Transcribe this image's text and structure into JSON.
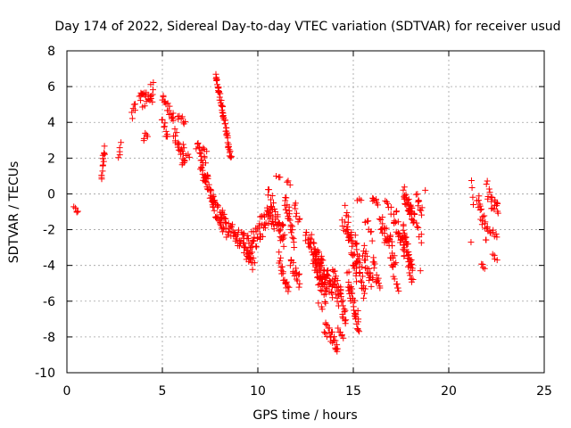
{
  "chart_data": {
    "type": "scatter",
    "title": "Day 174 of 2022, Sidereal Day-to-day VTEC variation (SDTVAR) for receiver usud",
    "xlabel": "GPS time / hours",
    "ylabel": "SDTVAR / TECUs",
    "xlim": [
      0,
      25
    ],
    "ylim": [
      -10,
      8
    ],
    "xticks": [
      "0",
      "5",
      "10",
      "15",
      "20",
      "25"
    ],
    "yticks": [
      "8",
      "6",
      "4",
      "2",
      "0",
      "-2",
      "-4",
      "-6",
      "-8",
      "-10"
    ],
    "grid": true,
    "marker": "+",
    "color": "#ff0000",
    "series": [
      {
        "name": "SDTVAR",
        "segments": [
          {
            "x0": 0.4,
            "x1": 0.6,
            "y0": -0.8,
            "y1": -1.0,
            "n": 5,
            "jitter": 0.1
          },
          {
            "x0": 1.8,
            "x1": 2.0,
            "y0": 1.0,
            "y1": 2.6,
            "n": 14,
            "jitter": 0.3
          },
          {
            "x0": 2.7,
            "x1": 2.8,
            "y0": 2.0,
            "y1": 2.7,
            "n": 5,
            "jitter": 0.2
          },
          {
            "x0": 3.4,
            "x1": 3.6,
            "y0": 4.3,
            "y1": 5.0,
            "n": 6,
            "jitter": 0.3
          },
          {
            "x0": 3.8,
            "x1": 4.5,
            "y0": 5.2,
            "y1": 5.6,
            "n": 24,
            "jitter": 0.45
          },
          {
            "x0": 4.0,
            "x1": 4.2,
            "y0": 3.0,
            "y1": 3.4,
            "n": 5,
            "jitter": 0.2
          },
          {
            "x0": 4.4,
            "x1": 4.5,
            "y0": 6.1,
            "y1": 6.2,
            "n": 2,
            "jitter": 0.05
          },
          {
            "x0": 5.0,
            "x1": 5.6,
            "y0": 5.5,
            "y1": 4.2,
            "n": 18,
            "jitter": 0.3
          },
          {
            "x0": 5.0,
            "x1": 5.3,
            "y0": 4.0,
            "y1": 3.2,
            "n": 10,
            "jitter": 0.3
          },
          {
            "x0": 5.6,
            "x1": 6.2,
            "y0": 3.5,
            "y1": 2.0,
            "n": 22,
            "jitter": 0.5
          },
          {
            "x0": 5.8,
            "x1": 6.2,
            "y0": 4.4,
            "y1": 4.0,
            "n": 8,
            "jitter": 0.2
          },
          {
            "x0": 6.0,
            "x1": 6.4,
            "y0": 1.6,
            "y1": 2.2,
            "n": 6,
            "jitter": 0.3
          },
          {
            "x0": 6.8,
            "x1": 7.3,
            "y0": 2.8,
            "y1": 2.0,
            "n": 16,
            "jitter": 0.4
          },
          {
            "x0": 7.0,
            "x1": 7.7,
            "y0": 1.8,
            "y1": -0.6,
            "n": 40,
            "jitter": 0.5
          },
          {
            "x0": 7.6,
            "x1": 8.3,
            "y0": -0.6,
            "y1": -1.6,
            "n": 30,
            "jitter": 0.5
          },
          {
            "x0": 7.8,
            "x1": 8.6,
            "y0": 6.7,
            "y1": 2.0,
            "n": 55,
            "jitter": 0.15
          },
          {
            "x0": 8.0,
            "x1": 8.8,
            "y0": -1.6,
            "y1": -2.3,
            "n": 25,
            "jitter": 0.5
          },
          {
            "x0": 8.8,
            "x1": 9.6,
            "y0": -2.4,
            "y1": -3.0,
            "n": 35,
            "jitter": 0.6
          },
          {
            "x0": 9.3,
            "x1": 9.8,
            "y0": -3.2,
            "y1": -4.0,
            "n": 18,
            "jitter": 0.4
          },
          {
            "x0": 9.6,
            "x1": 10.6,
            "y0": -2.8,
            "y1": -1.2,
            "n": 45,
            "jitter": 0.7
          },
          {
            "x0": 10.5,
            "x1": 10.8,
            "y0": 0.2,
            "y1": -0.4,
            "n": 6,
            "jitter": 0.3
          },
          {
            "x0": 10.6,
            "x1": 11.4,
            "y0": -1.0,
            "y1": -2.4,
            "n": 40,
            "jitter": 0.6
          },
          {
            "x0": 11.0,
            "x1": 11.2,
            "y0": 1.0,
            "y1": 1.0,
            "n": 3,
            "jitter": 0.1
          },
          {
            "x0": 11.1,
            "x1": 11.6,
            "y0": -3.5,
            "y1": -5.5,
            "n": 20,
            "jitter": 0.3
          },
          {
            "x0": 11.4,
            "x1": 11.9,
            "y0": -0.2,
            "y1": -2.6,
            "n": 25,
            "jitter": 0.5
          },
          {
            "x0": 11.5,
            "x1": 11.7,
            "y0": 0.7,
            "y1": 0.6,
            "n": 3,
            "jitter": 0.1
          },
          {
            "x0": 11.7,
            "x1": 12.2,
            "y0": -3.8,
            "y1": -5.0,
            "n": 18,
            "jitter": 0.4
          },
          {
            "x0": 11.9,
            "x1": 12.2,
            "y0": -0.6,
            "y1": -1.6,
            "n": 8,
            "jitter": 0.3
          },
          {
            "x0": 12.5,
            "x1": 13.3,
            "y0": -2.2,
            "y1": -3.8,
            "n": 35,
            "jitter": 0.5
          },
          {
            "x0": 12.9,
            "x1": 13.6,
            "y0": -3.6,
            "y1": -5.8,
            "n": 45,
            "jitter": 0.6
          },
          {
            "x0": 13.3,
            "x1": 13.9,
            "y0": -4.0,
            "y1": -5.2,
            "n": 30,
            "jitter": 0.6
          },
          {
            "x0": 13.2,
            "x1": 13.4,
            "y0": -6.2,
            "y1": -6.4,
            "n": 3,
            "jitter": 0.1
          },
          {
            "x0": 13.5,
            "x1": 14.2,
            "y0": -7.4,
            "y1": -8.6,
            "n": 25,
            "jitter": 0.4
          },
          {
            "x0": 13.9,
            "x1": 14.6,
            "y0": -4.5,
            "y1": -6.8,
            "n": 40,
            "jitter": 0.7
          },
          {
            "x0": 14.2,
            "x1": 14.5,
            "y0": -7.6,
            "y1": -8.0,
            "n": 6,
            "jitter": 0.2
          },
          {
            "x0": 14.4,
            "x1": 14.7,
            "y0": -1.6,
            "y1": -2.0,
            "n": 6,
            "jitter": 0.3
          },
          {
            "x0": 14.6,
            "x1": 15.2,
            "y0": -1.2,
            "y1": -4.5,
            "n": 40,
            "jitter": 0.6
          },
          {
            "x0": 14.7,
            "x1": 15.3,
            "y0": -4.6,
            "y1": -7.5,
            "n": 35,
            "jitter": 0.6
          },
          {
            "x0": 15.2,
            "x1": 15.4,
            "y0": -0.4,
            "y1": -0.3,
            "n": 3,
            "jitter": 0.1
          },
          {
            "x0": 15.1,
            "x1": 15.6,
            "y0": -2.8,
            "y1": -5.6,
            "n": 25,
            "jitter": 0.5
          },
          {
            "x0": 15.5,
            "x1": 16.0,
            "y0": -3.0,
            "y1": -5.0,
            "n": 22,
            "jitter": 0.5
          },
          {
            "x0": 15.6,
            "x1": 16.0,
            "y0": -1.3,
            "y1": -2.4,
            "n": 8,
            "jitter": 0.3
          },
          {
            "x0": 16.0,
            "x1": 16.3,
            "y0": -0.3,
            "y1": -0.6,
            "n": 8,
            "jitter": 0.2
          },
          {
            "x0": 16.0,
            "x1": 16.4,
            "y0": -3.6,
            "y1": -5.4,
            "n": 14,
            "jitter": 0.4
          },
          {
            "x0": 16.4,
            "x1": 17.2,
            "y0": -1.6,
            "y1": -3.6,
            "n": 35,
            "jitter": 0.6
          },
          {
            "x0": 16.7,
            "x1": 17.0,
            "y0": -0.4,
            "y1": -1.0,
            "n": 6,
            "jitter": 0.2
          },
          {
            "x0": 17.0,
            "x1": 17.4,
            "y0": -4.0,
            "y1": -5.5,
            "n": 10,
            "jitter": 0.3
          },
          {
            "x0": 17.1,
            "x1": 17.7,
            "y0": -1.0,
            "y1": -3.2,
            "n": 25,
            "jitter": 0.6
          },
          {
            "x0": 17.6,
            "x1": 18.0,
            "y0": 0.1,
            "y1": -1.0,
            "n": 20,
            "jitter": 0.4
          },
          {
            "x0": 17.6,
            "x1": 18.1,
            "y0": -2.0,
            "y1": -4.8,
            "n": 45,
            "jitter": 0.6
          },
          {
            "x0": 17.9,
            "x1": 18.2,
            "y0": -0.6,
            "y1": -1.4,
            "n": 18,
            "jitter": 0.4
          },
          {
            "x0": 18.3,
            "x1": 18.6,
            "y0": -0.1,
            "y1": -1.0,
            "n": 10,
            "jitter": 0.3
          },
          {
            "x0": 18.3,
            "x1": 18.6,
            "y0": -1.8,
            "y1": -2.6,
            "n": 6,
            "jitter": 0.3
          },
          {
            "x0": 18.5,
            "x1": 18.6,
            "y0": -4.3,
            "y1": -4.3,
            "n": 1,
            "jitter": 0
          },
          {
            "x0": 18.8,
            "x1": 18.9,
            "y0": 0.2,
            "y1": 0.2,
            "n": 1,
            "jitter": 0
          },
          {
            "x0": 21.2,
            "x1": 21.3,
            "y0": 0.6,
            "y1": -0.6,
            "n": 4,
            "jitter": 0.2
          },
          {
            "x0": 21.2,
            "x1": 21.3,
            "y0": -2.7,
            "y1": -2.7,
            "n": 1,
            "jitter": 0
          },
          {
            "x0": 21.5,
            "x1": 22.0,
            "y0": -0.4,
            "y1": -2.3,
            "n": 20,
            "jitter": 0.5
          },
          {
            "x0": 21.7,
            "x1": 21.9,
            "y0": -4.0,
            "y1": -4.1,
            "n": 4,
            "jitter": 0.1
          },
          {
            "x0": 22.0,
            "x1": 22.6,
            "y0": 0.3,
            "y1": -1.2,
            "n": 20,
            "jitter": 0.5
          },
          {
            "x0": 22.0,
            "x1": 22.5,
            "y0": -2.0,
            "y1": -2.3,
            "n": 10,
            "jitter": 0.2
          },
          {
            "x0": 22.3,
            "x1": 22.5,
            "y0": -3.4,
            "y1": -3.7,
            "n": 4,
            "jitter": 0.1
          }
        ]
      }
    ]
  }
}
